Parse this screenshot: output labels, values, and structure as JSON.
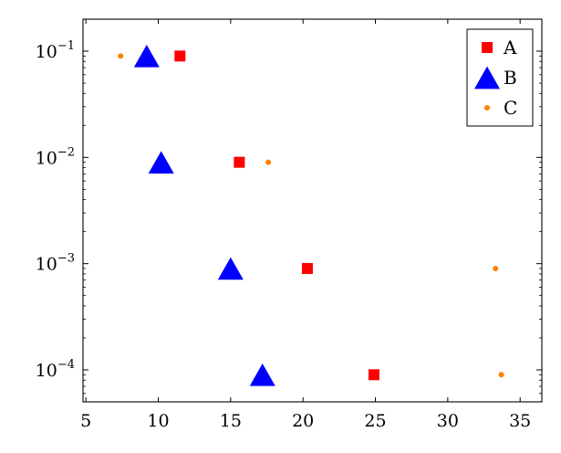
{
  "chart_data": {
    "type": "scatter",
    "title": "",
    "xlabel": "",
    "ylabel": "",
    "xlim": [
      4.8,
      36.5
    ],
    "ylim": [
      5e-05,
      0.2
    ],
    "y_scale": "log",
    "grid": false,
    "legend_placement": "top-right",
    "x_ticks": [
      {
        "value": 5,
        "label": "5"
      },
      {
        "value": 10,
        "label": "10"
      },
      {
        "value": 15,
        "label": "15"
      },
      {
        "value": 20,
        "label": "20"
      },
      {
        "value": 25,
        "label": "25"
      },
      {
        "value": 30,
        "label": "30"
      },
      {
        "value": 35,
        "label": "35"
      }
    ],
    "y_ticks": [
      {
        "value": 0.1,
        "base": "10",
        "exponent": "−1"
      },
      {
        "value": 0.01,
        "base": "10",
        "exponent": "−2"
      },
      {
        "value": 0.001,
        "base": "10",
        "exponent": "−3"
      },
      {
        "value": 0.0001,
        "base": "10",
        "exponent": "−4"
      }
    ],
    "series": [
      {
        "name": "A",
        "marker": "square",
        "color": "#ff0000",
        "points": [
          {
            "x": 11.5,
            "y": 0.09
          },
          {
            "x": 15.6,
            "y": 0.009
          },
          {
            "x": 20.3,
            "y": 0.0009
          },
          {
            "x": 24.9,
            "y": 9e-05
          }
        ]
      },
      {
        "name": "B",
        "marker": "triangle",
        "color": "#0000ff",
        "points": [
          {
            "x": 9.2,
            "y": 0.09
          },
          {
            "x": 10.2,
            "y": 0.009
          },
          {
            "x": 15.0,
            "y": 0.0009
          },
          {
            "x": 17.2,
            "y": 9e-05
          }
        ]
      },
      {
        "name": "C",
        "marker": "circle",
        "color": "#ff8000",
        "points": [
          {
            "x": 7.4,
            "y": 0.09
          },
          {
            "x": 17.6,
            "y": 0.009
          },
          {
            "x": 33.3,
            "y": 0.0009
          },
          {
            "x": 33.7,
            "y": 9e-05
          }
        ]
      }
    ]
  }
}
